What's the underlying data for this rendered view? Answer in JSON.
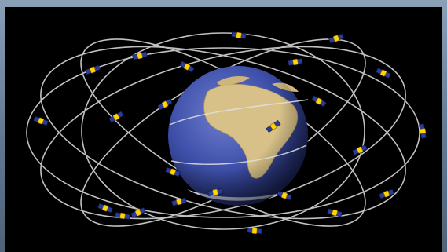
{
  "image": {
    "subject": "gps-satellite-constellation-illustration",
    "palette": {
      "frame": "#61788f",
      "space": "#000000",
      "orbit": "#d6d6d6",
      "ocean": "#2f3f8f",
      "land": "#d8c188",
      "satellite_body": "#ffd400",
      "solar_panel": "#2a3b9a"
    },
    "globe_view": "africa-europe",
    "orbit_count": 6,
    "satellite_count": 24
  }
}
